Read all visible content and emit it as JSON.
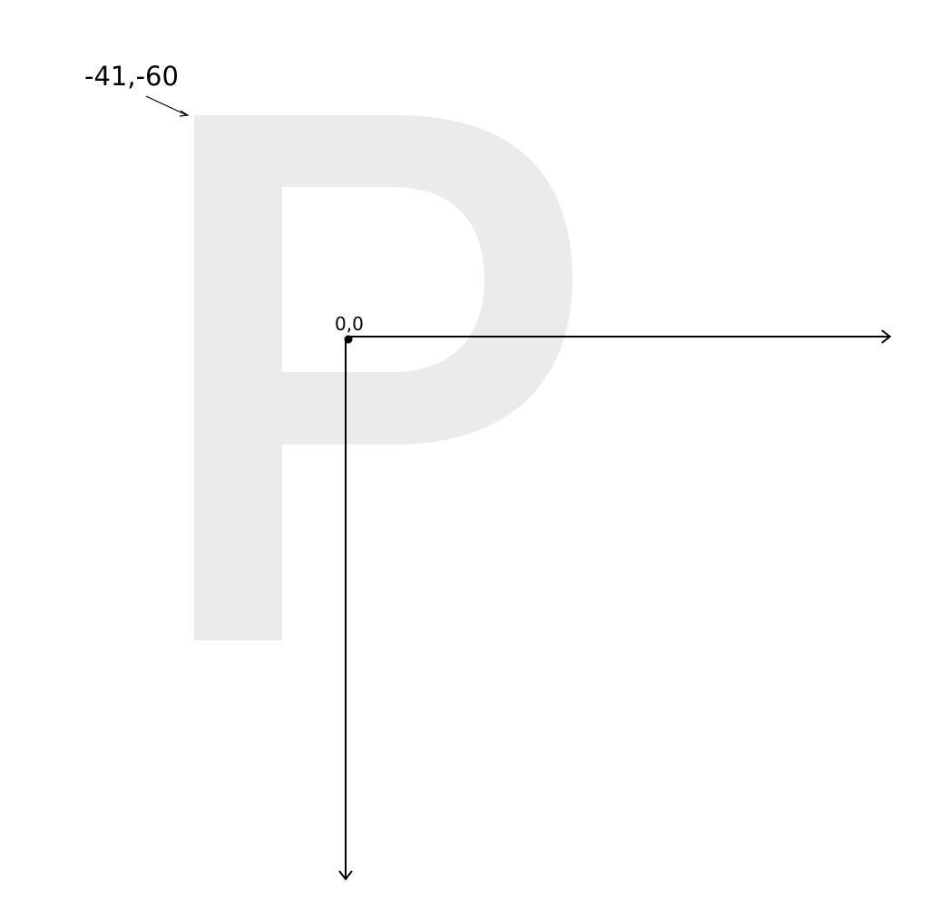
{
  "diagram": {
    "glyph": "P",
    "origin_label": "0,0",
    "corner_label": "-41,-60",
    "colors": {
      "glyph_fill": "#ebebeb",
      "ink": "#000000",
      "background": "#ffffff"
    }
  }
}
